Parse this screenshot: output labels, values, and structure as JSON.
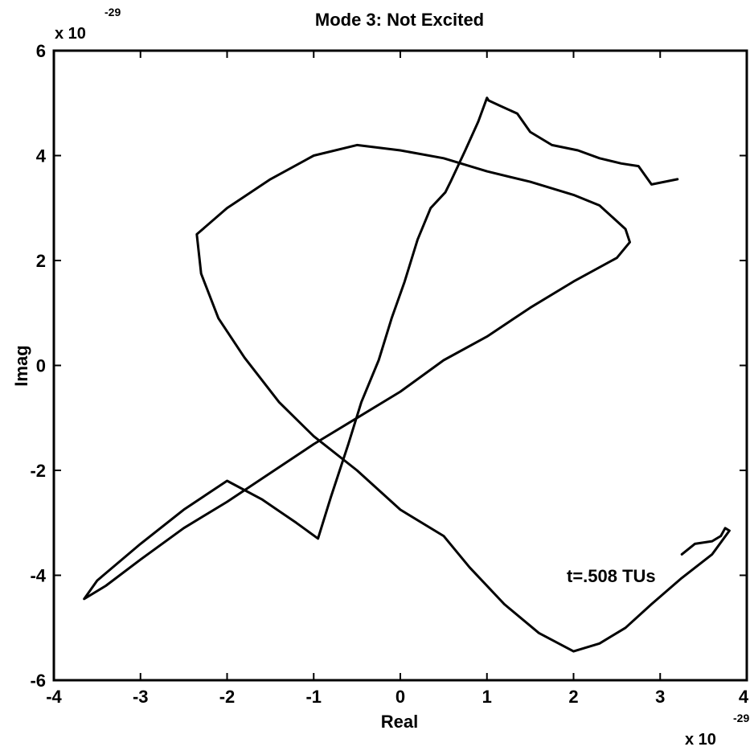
{
  "chart_data": {
    "type": "line",
    "title": "Mode 3: Not Excited",
    "xlabel": "Real",
    "ylabel": "Imag",
    "x_multiplier": {
      "base": "x 10",
      "exponent": "-29"
    },
    "y_multiplier": {
      "base": "x 10",
      "exponent": "-29"
    },
    "xlim": [
      -4,
      4
    ],
    "ylim": [
      -6,
      6
    ],
    "x_ticks": [
      "-4",
      "-3",
      "-2",
      "-1",
      "0",
      "1",
      "2",
      "3",
      "4"
    ],
    "y_ticks": [
      "-6",
      "-4",
      "-2",
      "0",
      "2",
      "4",
      "6"
    ],
    "grid": false,
    "annotation": "t=.508 TUs",
    "series": [
      {
        "x": [
          3.2,
          2.9,
          2.75,
          2.55,
          2.3,
          2.05,
          1.75,
          1.5,
          1.35,
          1.15,
          1.02,
          1.0,
          0.9,
          0.75,
          0.58,
          0.52,
          0.35,
          0.2,
          0.05,
          -0.1,
          -0.25,
          -0.45,
          -0.6,
          -0.8,
          -0.95,
          -1.2,
          -1.6,
          -2.0,
          -2.5,
          -3.0,
          -3.5,
          -3.65,
          -3.4,
          -3.0,
          -2.5,
          -2.0,
          -1.5,
          -1.0,
          -0.5,
          0.0,
          0.5,
          1.0,
          1.5,
          2.0,
          2.5,
          2.65,
          2.6,
          2.5,
          2.3,
          2.0,
          1.5,
          1.0,
          0.5,
          0.0,
          -0.5,
          -1.0,
          -1.5,
          -2.0,
          -2.35,
          -2.3,
          -2.1,
          -1.8,
          -1.4,
          -1.0,
          -0.5,
          0.0,
          0.5,
          0.8,
          1.2,
          1.6,
          2.0,
          2.3,
          2.6,
          2.9,
          3.25,
          3.6,
          3.8,
          3.75,
          3.7,
          3.6,
          3.4,
          3.25
        ],
        "y": [
          3.55,
          3.45,
          3.8,
          3.85,
          3.95,
          4.1,
          4.2,
          4.45,
          4.8,
          4.95,
          5.05,
          5.1,
          4.65,
          4.1,
          3.5,
          3.3,
          3.0,
          2.4,
          1.6,
          0.9,
          0.1,
          -0.7,
          -1.5,
          -2.5,
          -3.3,
          -3.0,
          -2.55,
          -2.2,
          -2.75,
          -3.4,
          -4.1,
          -4.45,
          -4.2,
          -3.7,
          -3.1,
          -2.6,
          -2.05,
          -1.5,
          -1.0,
          -0.5,
          0.1,
          0.55,
          1.1,
          1.6,
          2.05,
          2.35,
          2.6,
          2.75,
          3.05,
          3.25,
          3.5,
          3.7,
          3.95,
          4.1,
          4.2,
          4.0,
          3.55,
          3.0,
          2.5,
          1.75,
          0.9,
          0.15,
          -0.7,
          -1.35,
          -2.0,
          -2.75,
          -3.25,
          -3.85,
          -4.55,
          -5.1,
          -5.45,
          -5.3,
          -5.0,
          -4.55,
          -4.05,
          -3.6,
          -3.15,
          -3.1,
          -3.25,
          -3.35,
          -3.4,
          -3.6
        ]
      }
    ]
  }
}
